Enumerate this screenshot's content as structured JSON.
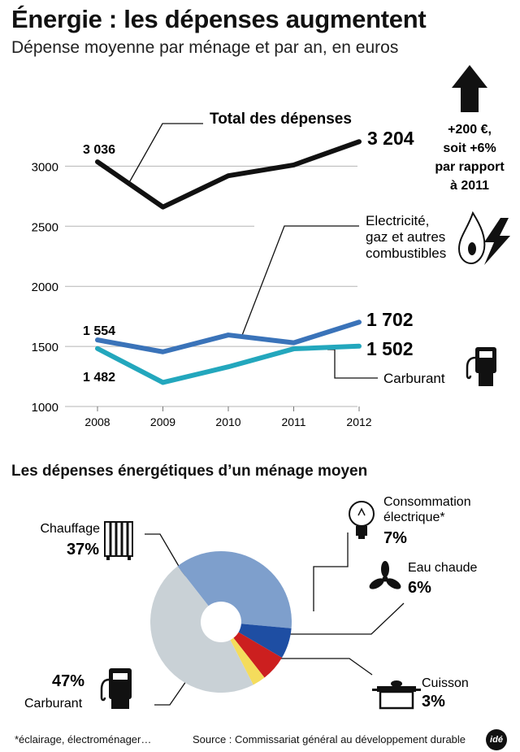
{
  "header": {
    "title": "Énergie :  les dépenses augmentent",
    "subtitle": "Dépense moyenne par ménage et par an, en euros"
  },
  "increase_note": {
    "line1": "+200 €,",
    "line2": "soit +6%",
    "line3": "par rapport",
    "line4": "à 2011"
  },
  "series_labels": {
    "total": "Total des dépenses",
    "elec_line1": "Electricité,",
    "elec_line2": "gaz et autres",
    "elec_line3": "combustibles",
    "carburant": "Carburant"
  },
  "point_labels": {
    "total_first": "3 036",
    "total_last": "3 204",
    "elec_first": "1 554",
    "elec_last": "1 702",
    "carb_first": "1 482",
    "carb_last": "1 502"
  },
  "section2_title": "Les dépenses énergétiques d’un ménage moyen",
  "donut_labels": {
    "chauffage_name": "Chauffage",
    "chauffage_pct": "37%",
    "conso_line1": "Consommation",
    "conso_line2": "électrique*",
    "conso_pct": "7%",
    "eau_name": "Eau chaude",
    "eau_pct": "6%",
    "cuisson_name": "Cuisson",
    "cuisson_pct": "3%",
    "carburant_pct": "47%",
    "carburant_name": "Carburant"
  },
  "footer": {
    "note": "*éclairage, électroménager…",
    "source": "Source : Commissariat général au développement durable",
    "logo": "idé"
  },
  "colors": {
    "total": "#111111",
    "elec": "#3a73b9",
    "carb": "#23a7bd",
    "chauffage": "#7e9fcc",
    "conso": "#1e4ea3",
    "eau": "#cc1f1f",
    "cuisson": "#f4dc5c",
    "carburant": "#c9d1d6",
    "grid": "#b5b5b5"
  },
  "chart_data": [
    {
      "type": "line",
      "x": [
        2008,
        2009,
        2010,
        2011,
        2012
      ],
      "series": [
        {
          "name": "Total des dépenses",
          "values": [
            3036,
            2660,
            2920,
            3010,
            3204
          ]
        },
        {
          "name": "Electricité, gaz et autres combustibles",
          "values": [
            1554,
            1455,
            1595,
            1530,
            1702
          ]
        },
        {
          "name": "Carburant",
          "values": [
            1482,
            1200,
            1330,
            1480,
            1502
          ]
        }
      ],
      "yticks": [
        1000,
        1500,
        2000,
        2500,
        3000
      ],
      "ylim": [
        1000,
        3300
      ],
      "grid": true
    },
    {
      "type": "pie",
      "categories": [
        "Chauffage",
        "Consommation électrique",
        "Eau chaude",
        "Cuisson",
        "Carburant"
      ],
      "values": [
        37,
        7,
        6,
        3,
        47
      ],
      "donut": true
    }
  ]
}
